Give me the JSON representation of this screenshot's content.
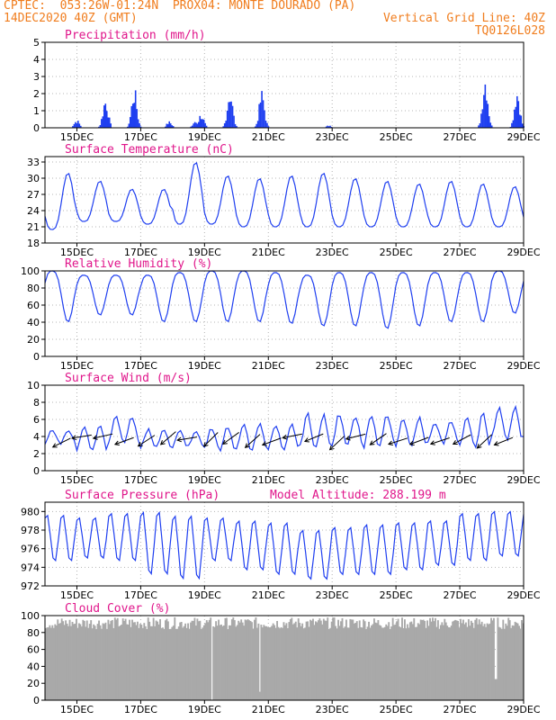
{
  "header": {
    "line1": "CPTEC:  053:26W-01:24N  PROX04: MONTE DOURADO (PA)",
    "line2_left": "14DEC2020 40Z (GMT)",
    "line2_right": "Vertical Grid Line: 40Z",
    "line3_right": "TQ0126L028"
  },
  "colors": {
    "header": "#f07d1e",
    "panel_title": "#e0168b",
    "series": "#1f3ff0",
    "cloud": "#a9a9a9",
    "grid": "#b4b4b4"
  },
  "x_axis": {
    "ticks": [
      "15DEC",
      "17DEC",
      "19DEC",
      "21DEC",
      "23DEC",
      "25DEC",
      "27DEC",
      "29DEC"
    ]
  },
  "chart_data": [
    {
      "type": "bar",
      "title": "Precipitation (mm/h)",
      "ylim": [
        0,
        5
      ],
      "yticks": [
        "0",
        "1",
        "2",
        "3",
        "4",
        "5"
      ],
      "grid": true,
      "bursts": [
        {
          "day": 15.0,
          "peak": 0.5
        },
        {
          "day": 15.9,
          "peak": 1.9
        },
        {
          "day": 16.8,
          "peak": 2.5
        },
        {
          "day": 17.9,
          "peak": 0.4
        },
        {
          "day": 18.7,
          "peak": 0.4
        },
        {
          "day": 18.9,
          "peak": 0.9
        },
        {
          "day": 19.8,
          "peak": 2.5
        },
        {
          "day": 20.8,
          "peak": 2.3
        },
        {
          "day": 22.9,
          "peak": 0.15
        },
        {
          "day": 27.8,
          "peak": 3.4
        },
        {
          "day": 28.8,
          "peak": 2.5
        }
      ]
    },
    {
      "type": "line",
      "title": "Surface Temperature (nC)",
      "ylim": [
        18,
        34
      ],
      "yticks": [
        "18",
        "21",
        "24",
        "27",
        "30",
        "33"
      ],
      "grid": true,
      "daily": {
        "min": [
          20.5,
          22,
          22,
          21.5,
          21.5,
          21.5,
          21,
          21,
          21,
          21,
          21,
          21,
          21,
          21,
          21
        ],
        "max": [
          31,
          29.5,
          28,
          28,
          33,
          30.5,
          30,
          30.5,
          31,
          30,
          29.5,
          29,
          29.5,
          29,
          28.5
        ]
      }
    },
    {
      "type": "line",
      "title": "Relative Humidity (%)",
      "ylim": [
        0,
        100
      ],
      "yticks": [
        "0",
        "20",
        "40",
        "60",
        "80",
        "100"
      ],
      "grid": true,
      "daily": {
        "min": [
          40,
          48,
          48,
          40,
          40,
          40,
          40,
          38,
          35,
          35,
          32,
          35,
          40,
          40,
          50
        ],
        "max": [
          100,
          95,
          95,
          95,
          98,
          100,
          100,
          98,
          95,
          98,
          98,
          98,
          98,
          98,
          100
        ]
      }
    },
    {
      "type": "line",
      "title": "Surface Wind (m/s)",
      "ylim": [
        0,
        10
      ],
      "yticks": [
        "0",
        "2",
        "4",
        "6",
        "8",
        "10"
      ],
      "grid": true,
      "daily": {
        "min": [
          3,
          2,
          3,
          2.5,
          2.5,
          2,
          2,
          2,
          2,
          2.5,
          2.5,
          2.5,
          3,
          2,
          3
        ],
        "max": [
          5,
          5.5,
          6.5,
          5,
          5,
          5.5,
          6,
          6,
          7,
          7,
          7,
          6.5,
          6,
          7,
          8
        ]
      }
    },
    {
      "type": "line",
      "title": "Surface Pressure (hPa)",
      "annotation": "Model Altitude: 288.199 m",
      "ylim": [
        972,
        981
      ],
      "yticks": [
        "972",
        "974",
        "976",
        "978",
        "980"
      ],
      "grid": true,
      "daily": {
        "min": [
          974.5,
          974.8,
          974.5,
          973,
          972.5,
          974.5,
          973.5,
          973,
          972.5,
          973,
          973,
          973.5,
          974,
          974.5,
          975
        ],
        "max": [
          979.8,
          979.5,
          980,
          980.2,
          979.8,
          979.5,
          979.2,
          979,
          978.2,
          978.5,
          978.8,
          979,
          979.2,
          980,
          980.2
        ]
      }
    },
    {
      "type": "bar",
      "title": "Cloud Cover (%)",
      "ylim": [
        0,
        100
      ],
      "yticks": [
        "0",
        "20",
        "40",
        "60",
        "80",
        "100"
      ],
      "grid": true,
      "typical": 92,
      "dips": [
        {
          "day": 19.2,
          "value": 0
        },
        {
          "day": 20.7,
          "value": 10
        },
        {
          "day": 28.1,
          "value": 25
        }
      ]
    }
  ]
}
